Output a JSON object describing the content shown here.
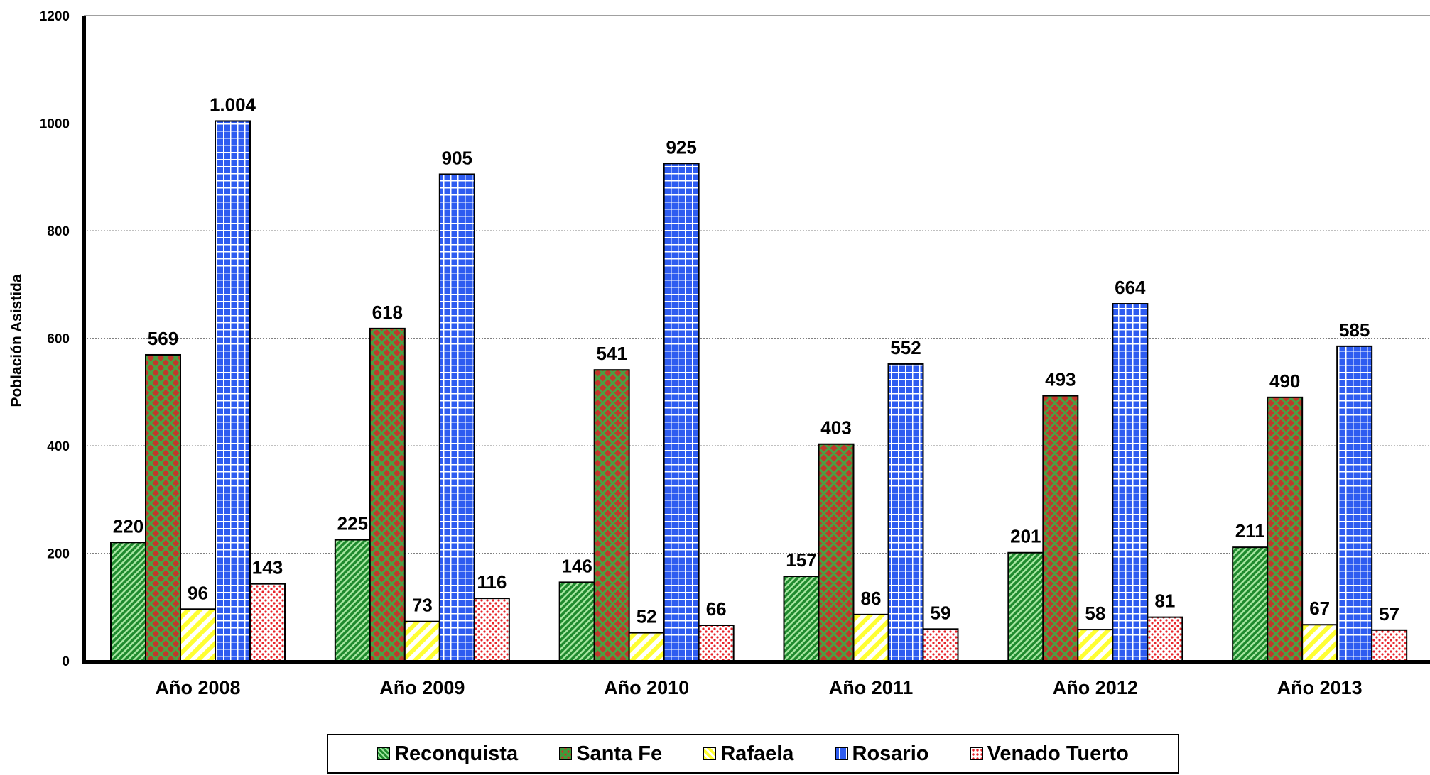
{
  "chart_data": {
    "type": "bar",
    "ylabel": "Población Asistida",
    "ylim": [
      0,
      1200
    ],
    "yticks": [
      0,
      200,
      400,
      600,
      800,
      1000,
      1200
    ],
    "grid": true,
    "categories": [
      "Año 2008",
      "Año 2009",
      "Año 2010",
      "Año 2011",
      "Año 2012",
      "Año 2013"
    ],
    "series": [
      {
        "name": "Reconquista",
        "values": [
          220,
          225,
          146,
          157,
          201,
          211
        ],
        "labels": [
          "220",
          "225",
          "146",
          "157",
          "201",
          "211"
        ],
        "color": "#2e9a3c"
      },
      {
        "name": "Santa Fe",
        "values": [
          569,
          618,
          541,
          403,
          493,
          490
        ],
        "labels": [
          "569",
          "618",
          "541",
          "403",
          "493",
          "490"
        ],
        "color": "#c0392b"
      },
      {
        "name": "Rafaela",
        "values": [
          96,
          73,
          52,
          86,
          58,
          67
        ],
        "labels": [
          "96",
          "73",
          "52",
          "86",
          "58",
          "67"
        ],
        "color": "#ffff33"
      },
      {
        "name": "Rosario",
        "values": [
          1004,
          905,
          925,
          552,
          664,
          585
        ],
        "labels": [
          "1.004",
          "905",
          "925",
          "552",
          "664",
          "585"
        ],
        "color": "#2e5cf0"
      },
      {
        "name": "Venado Tuerto",
        "values": [
          143,
          116,
          66,
          59,
          81,
          57
        ],
        "labels": [
          "143",
          "116",
          "66",
          "59",
          "81",
          "57"
        ],
        "color": "#e8242b"
      }
    ],
    "legend_position": "bottom"
  }
}
